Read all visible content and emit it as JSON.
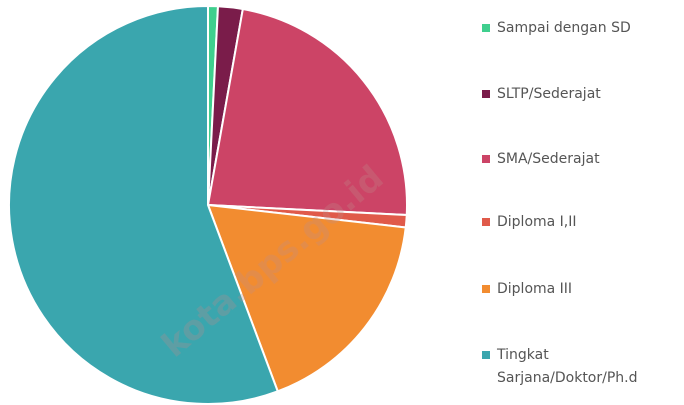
{
  "chart_data": {
    "type": "pie",
    "categories": [
      "Sampai dengan SD",
      "SLTP/Sederajat",
      "SMA/Sederajat",
      "Diploma I,II",
      "Diploma III",
      "Tingkat Sarjana/Doktor/Ph.d"
    ],
    "values": [
      0.8,
      2,
      23,
      1,
      17.5,
      55.7
    ],
    "colors": [
      "#3fcf8e",
      "#7a1c4a",
      "#cc4466",
      "#e05a4a",
      "#f28c30",
      "#3aa6ae"
    ],
    "legend": "right",
    "watermark": "kota.bps.go.id"
  }
}
